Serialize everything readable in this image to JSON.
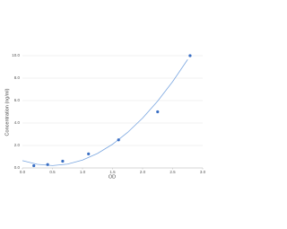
{
  "chart_data": {
    "type": "scatter",
    "x_label": "OD",
    "y_label": "Concentration (ng/ml)",
    "xlim": [
      0,
      3
    ],
    "ylim": [
      0,
      10
    ],
    "xticks": [
      {
        "value": 0,
        "label": "0.0"
      },
      0.5,
      {
        "value": 1,
        "label": "1.0"
      },
      1.5,
      {
        "value": 2,
        "label": "2.0"
      },
      2.5,
      {
        "value": 3,
        "label": "3.0"
      }
    ],
    "yticks": [
      {
        "value": 0,
        "label": "0.0"
      },
      {
        "value": 2,
        "label": "2.0"
      },
      {
        "value": 4,
        "label": "4.0"
      },
      {
        "value": 6,
        "label": "6.0"
      },
      {
        "value": 8,
        "label": "8.0"
      },
      {
        "value": 10,
        "label": "10.0"
      }
    ],
    "grid": true,
    "series": [
      {
        "color": "#3a6fc4",
        "x": [
          0.19,
          0.42,
          0.67,
          1.1,
          1.6,
          2.25,
          2.79
        ],
        "values": [
          0.2,
          0.3,
          0.6,
          1.25,
          2.5,
          5,
          10
        ]
      }
    ],
    "fit": {
      "color": "#7aa6e0",
      "x": [
        0,
        0.25,
        0.5,
        0.75,
        1,
        1.25,
        1.5,
        1.75,
        2,
        2.25,
        2.5,
        2.75
      ],
      "values": [
        0.65,
        0.32,
        0.21,
        0.34,
        0.7,
        1.29,
        2.11,
        3.16,
        4.44,
        5.95,
        7.69,
        9.66
      ]
    }
  }
}
